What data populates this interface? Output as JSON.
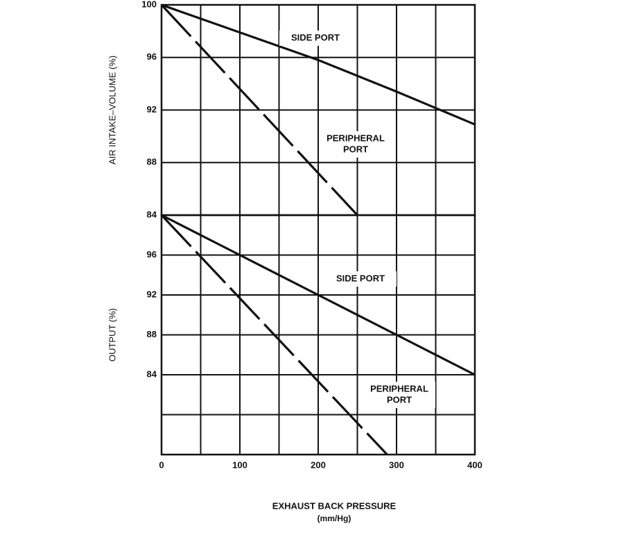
{
  "chart_data": [
    {
      "type": "line",
      "ylabel": "AIR INTAKE–VOLUME  (%)",
      "xlim": [
        0,
        400
      ],
      "ylim": [
        84,
        100
      ],
      "yticks": [
        84,
        88,
        92,
        96,
        100
      ],
      "xgrid": [
        0,
        50,
        100,
        150,
        200,
        250,
        300,
        350,
        400
      ],
      "series": [
        {
          "label": [
            "SIDE PORT"
          ],
          "color": "#111111",
          "dashed": false,
          "x": [
            0,
            100,
            200,
            300,
            400
          ],
          "values": [
            100,
            97.9,
            95.8,
            93.4,
            90.9
          ]
        },
        {
          "label": [
            "PERIPHERAL",
            "PORT"
          ],
          "color": "#111111",
          "dashed": true,
          "x": [
            0,
            250
          ],
          "values": [
            100,
            84
          ]
        }
      ]
    },
    {
      "type": "line",
      "ylabel": "OUTPUT  (%)",
      "xlabel": [
        "EXHAUST BACK PRESSURE",
        "(mm/Hg)"
      ],
      "xlim": [
        0,
        400
      ],
      "ylim": [
        76,
        100
      ],
      "yticks": [
        84,
        88,
        92,
        96
      ],
      "ygrid": [
        80
      ],
      "xticks": [
        0,
        100,
        200,
        300,
        400
      ],
      "xgrid": [
        0,
        50,
        100,
        150,
        200,
        250,
        300,
        350,
        400
      ],
      "series": [
        {
          "label": [
            "SIDE PORT"
          ],
          "color": "#111111",
          "dashed": false,
          "x": [
            0,
            100,
            200,
            300,
            400
          ],
          "values": [
            100,
            96,
            92,
            88,
            84
          ]
        },
        {
          "label": [
            "PERIPHERAL",
            "PORT"
          ],
          "color": "#111111",
          "dashed": true,
          "x": [
            0,
            288
          ],
          "values": [
            100,
            76
          ]
        }
      ]
    }
  ]
}
